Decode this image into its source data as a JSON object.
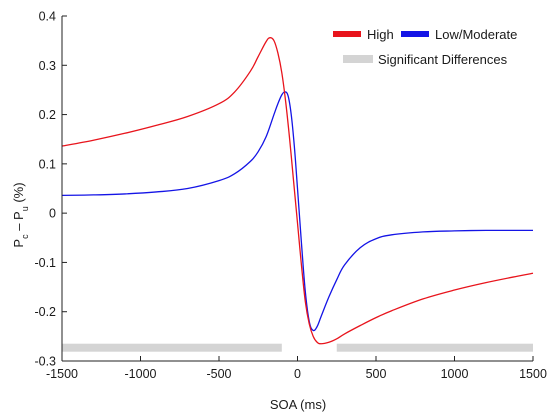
{
  "chart_data": {
    "type": "line",
    "title": "",
    "xlabel": "SOA (ms)",
    "ylabel_main": "P",
    "ylabel_sub1": "c",
    "ylabel_mid": " – P",
    "ylabel_sub2": "u",
    "ylabel_unit": " (%)",
    "xlim": [
      -1500,
      1500
    ],
    "ylim": [
      -0.3,
      0.4
    ],
    "xticks": [
      -1500,
      -1000,
      -500,
      0,
      500,
      1000,
      1500
    ],
    "yticks": [
      -0.3,
      -0.2,
      -0.1,
      0,
      0.1,
      0.2,
      0.3,
      0.4
    ],
    "xtick_labels": [
      "-1500",
      "-1000",
      "-500",
      "0",
      "500",
      "1000",
      "1500"
    ],
    "ytick_labels": [
      "-0.3",
      "-0.2",
      "-0.1",
      "0",
      "0.1",
      "0.2",
      "0.3",
      "0.4"
    ],
    "grid": false,
    "legend_position": "top-right",
    "series": [
      {
        "name": "High",
        "color": "#e8141c",
        "x": [
          -1500,
          -1300,
          -1100,
          -900,
          -700,
          -500,
          -400,
          -300,
          -250,
          -200,
          -175,
          -150,
          -125,
          -100,
          -75,
          -50,
          -25,
          0,
          25,
          50,
          75,
          100,
          125,
          150,
          200,
          250,
          300,
          400,
          500,
          600,
          800,
          1000,
          1200,
          1400,
          1500
        ],
        "y": [
          0.136,
          0.148,
          0.162,
          0.178,
          0.196,
          0.222,
          0.246,
          0.288,
          0.318,
          0.348,
          0.356,
          0.35,
          0.325,
          0.285,
          0.225,
          0.15,
          0.065,
          -0.02,
          -0.105,
          -0.18,
          -0.225,
          -0.25,
          -0.262,
          -0.265,
          -0.262,
          -0.255,
          -0.245,
          -0.228,
          -0.212,
          -0.198,
          -0.174,
          -0.156,
          -0.141,
          -0.128,
          -0.122
        ]
      },
      {
        "name": "Low/Moderate",
        "color": "#1414e6",
        "x": [
          -1500,
          -1300,
          -1100,
          -900,
          -700,
          -500,
          -400,
          -300,
          -250,
          -200,
          -150,
          -125,
          -100,
          -80,
          -60,
          -40,
          -20,
          0,
          25,
          50,
          75,
          100,
          125,
          150,
          200,
          250,
          300,
          400,
          500,
          600,
          800,
          1000,
          1200,
          1400,
          1500
        ],
        "y": [
          0.036,
          0.037,
          0.039,
          0.043,
          0.05,
          0.066,
          0.08,
          0.105,
          0.125,
          0.155,
          0.2,
          0.222,
          0.24,
          0.246,
          0.238,
          0.2,
          0.135,
          0.05,
          -0.06,
          -0.16,
          -0.22,
          -0.238,
          -0.23,
          -0.21,
          -0.17,
          -0.135,
          -0.105,
          -0.07,
          -0.052,
          -0.044,
          -0.038,
          -0.036,
          -0.035,
          -0.035,
          -0.035
        ]
      }
    ],
    "significance": {
      "name": "Significant Differences",
      "color": "#d4d4d4",
      "y": -0.273,
      "ranges": [
        [
          -1500,
          -100
        ],
        [
          250,
          1500
        ]
      ]
    }
  }
}
